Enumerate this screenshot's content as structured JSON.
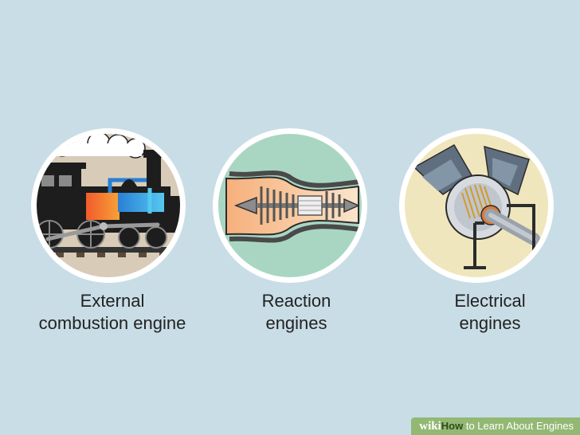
{
  "items": [
    {
      "line1": "External",
      "line2": "combustion engine",
      "icon": "steam-locomotive"
    },
    {
      "line1": "Reaction",
      "line2": "engines",
      "icon": "jet-turbine"
    },
    {
      "line1": "Electrical",
      "line2": "engines",
      "icon": "electric-motor"
    }
  ],
  "watermark": {
    "brand": "wiki",
    "how": "How",
    "rest": " to Learn About Engines"
  },
  "colors": {
    "background": "#c9dde6",
    "circle_ring": "#ffffff",
    "locomotive_bg": "#d8ccb8",
    "jet_bg": "#a9d6c3",
    "motor_bg": "#efe6bd",
    "watermark": "#93b873"
  }
}
